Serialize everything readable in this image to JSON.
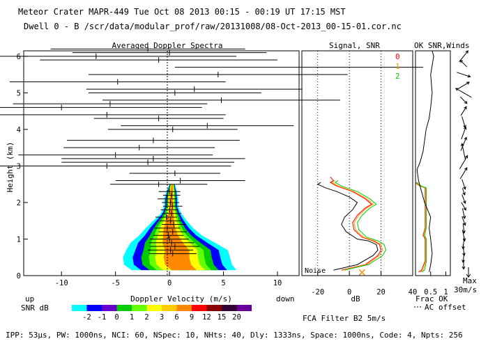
{
  "header": {
    "line1": "Meteor Crater  MAPR-449  Tue Oct 08 2013 00:15 - 00:19 UT 17:15 MST",
    "line2": "Dwell  0 -  B   /scr/data/modular_prof/raw/20131008/08-Oct-2013_00-15-01.cor.nc"
  },
  "footer": {
    "params": "IPP: 53μs,  PW: 1000ns,  NCI: 60,  NSpec: 10,  NHts: 40,  Dly: 1333ns,  Space: 1000ns,  Code: 4,  Npts: 256",
    "fca": "FCA Filter B2  5m/s"
  },
  "chart_data": [
    {
      "type": "heatmap",
      "title": "Averaged Doppler Spectra",
      "xlabel": "Doppler Velocity (m/s)",
      "ylabel": "Height (km)",
      "xlim": [
        -13.5,
        12
      ],
      "ylim": [
        0,
        6.15
      ],
      "x_ticks": [
        -10,
        -5,
        0,
        5,
        10
      ],
      "y_ticks": [
        0,
        1,
        2,
        3,
        4,
        5,
        6
      ],
      "left_note": "up",
      "right_note": "down",
      "colorbar": {
        "label": "SNR dB",
        "tick_labels": [
          "-2",
          "-1",
          "0",
          "1",
          "2",
          "3",
          "6",
          "9",
          "12",
          "15",
          "20"
        ],
        "colors": [
          "#00ffff",
          "#0000ff",
          "#6600cc",
          "#00cc00",
          "#66ff00",
          "#ffff00",
          "#ffcc00",
          "#ff8800",
          "#ff0000",
          "#880000",
          "#330033",
          "#660099"
        ]
      },
      "profile_outline": [
        [
          0.15,
          -3.5,
          6.2
        ],
        [
          0.3,
          -4.2,
          5.8
        ],
        [
          0.5,
          -4.3,
          5.6
        ],
        [
          0.7,
          -4.0,
          5.4
        ],
        [
          0.9,
          -3.6,
          4.2
        ],
        [
          1.1,
          -2.8,
          3.0
        ],
        [
          1.3,
          -2.2,
          2.2
        ],
        [
          1.5,
          -1.5,
          1.6
        ],
        [
          1.7,
          -0.8,
          1.1
        ],
        [
          1.9,
          -0.5,
          0.8
        ],
        [
          2.1,
          -0.5,
          0.8
        ],
        [
          2.3,
          -0.3,
          0.7
        ],
        [
          2.5,
          0.0,
          0.5
        ]
      ],
      "moments": [
        {
          "h": 0.6,
          "v": 0.3,
          "w": 2.2
        },
        {
          "h": 0.7,
          "v": 0.1,
          "w": 2.1
        },
        {
          "h": 0.8,
          "v": 0.5,
          "w": 2.3
        },
        {
          "h": 0.9,
          "v": 0.2,
          "w": 2.1
        },
        {
          "h": 1.0,
          "v": 0.0,
          "w": 1.8
        },
        {
          "h": 1.1,
          "v": -0.1,
          "w": 1.4
        },
        {
          "h": 1.2,
          "v": 0.3,
          "w": 1.3
        },
        {
          "h": 1.3,
          "v": -0.2,
          "w": 1.2
        },
        {
          "h": 1.4,
          "v": 0.4,
          "w": 1.1
        },
        {
          "h": 1.5,
          "v": 0.1,
          "w": 1.0
        },
        {
          "h": 1.6,
          "v": -0.3,
          "w": 1.0
        },
        {
          "h": 1.7,
          "v": 0.2,
          "w": 0.9
        },
        {
          "h": 1.8,
          "v": 0.0,
          "w": 0.8
        },
        {
          "h": 1.9,
          "v": 0.3,
          "w": 0.9
        },
        {
          "h": 2.0,
          "v": 0.1,
          "w": 0.8
        },
        {
          "h": 2.1,
          "v": -0.2,
          "w": 0.9
        },
        {
          "h": 2.2,
          "v": 0.2,
          "w": 0.8
        },
        {
          "h": 2.3,
          "v": 0.0,
          "w": 1.0
        },
        {
          "h": 2.5,
          "v": -1.0,
          "w": 4.5
        },
        {
          "h": 2.6,
          "v": 1.0,
          "w": 6.0
        },
        {
          "h": 2.8,
          "v": 0.5,
          "w": 4.2
        },
        {
          "h": 3.0,
          "v": -5.8,
          "w": 11.5
        },
        {
          "h": 3.1,
          "v": -2.0,
          "w": 8.0
        },
        {
          "h": 3.2,
          "v": -1.5,
          "w": 8.5
        },
        {
          "h": 3.3,
          "v": -5.0,
          "w": 9.0
        },
        {
          "h": 3.5,
          "v": -2.8,
          "w": 7.0
        },
        {
          "h": 3.7,
          "v": -1.5,
          "w": 8.0
        },
        {
          "h": 4.0,
          "v": 0.3,
          "w": 6.0
        },
        {
          "h": 4.1,
          "v": 3.5,
          "w": 8.0
        },
        {
          "h": 4.3,
          "v": -1.0,
          "w": 6.0
        },
        {
          "h": 4.4,
          "v": -5.8,
          "w": 11.0
        },
        {
          "h": 4.6,
          "v": -10.0,
          "w": 13.0
        },
        {
          "h": 4.7,
          "v": -5.5,
          "w": 9.0
        },
        {
          "h": 4.8,
          "v": 4.8,
          "w": 11.0
        },
        {
          "h": 5.0,
          "v": 0.5,
          "w": 8.0
        },
        {
          "h": 5.1,
          "v": 2.3,
          "w": 10.0
        },
        {
          "h": 5.3,
          "v": -4.8,
          "w": 10.0
        },
        {
          "h": 5.5,
          "v": 4.5,
          "w": 12.0
        },
        {
          "h": 5.7,
          "v": 12.0,
          "w": 11.5
        },
        {
          "h": 5.9,
          "v": -1.0,
          "w": 11.0
        },
        {
          "h": 6.0,
          "v": -6.8,
          "w": 13.0
        },
        {
          "h": 6.1,
          "v": 0.0,
          "w": 9.0
        },
        {
          "h": 6.2,
          "v": -2.0,
          "w": 9.0
        }
      ]
    },
    {
      "type": "line",
      "title": "Signal, SNR",
      "xlabel": "dB",
      "xlim": [
        -30,
        40
      ],
      "ylim": [
        0,
        6.15
      ],
      "x_ticks": [
        -20,
        0,
        20,
        40
      ],
      "noise_label": "Noise",
      "legend": [
        "0",
        "1",
        "2"
      ],
      "series": [
        {
          "name": "Signal",
          "color": "#000000",
          "points": [
            [
              -10,
              0.15
            ],
            [
              5,
              0.3
            ],
            [
              15,
              0.55
            ],
            [
              18,
              0.7
            ],
            [
              17,
              0.85
            ],
            [
              12,
              0.95
            ],
            [
              5,
              1.0
            ],
            [
              -2,
              1.2
            ],
            [
              -5,
              1.4
            ],
            [
              -3,
              1.6
            ],
            [
              2,
              1.8
            ],
            [
              5,
              2.0
            ],
            [
              0,
              2.15
            ],
            [
              -8,
              2.3
            ],
            [
              -15,
              2.4
            ],
            [
              -20,
              2.5
            ],
            [
              -18,
              2.55
            ]
          ]
        },
        {
          "name": "SNR 0",
          "color": "#ff0000",
          "points": [
            [
              -5,
              0.15
            ],
            [
              10,
              0.3
            ],
            [
              18,
              0.55
            ],
            [
              20,
              0.7
            ],
            [
              19,
              0.85
            ],
            [
              15,
              0.95
            ],
            [
              8,
              1.05
            ],
            [
              3,
              1.25
            ],
            [
              2,
              1.45
            ],
            [
              5,
              1.65
            ],
            [
              10,
              1.85
            ],
            [
              14,
              1.95
            ],
            [
              10,
              2.1
            ],
            [
              2,
              2.3
            ],
            [
              -8,
              2.45
            ],
            [
              -12,
              2.55
            ],
            [
              -10,
              2.6
            ],
            [
              -12,
              2.7
            ]
          ]
        },
        {
          "name": "SNR 1",
          "color": "#ff9900",
          "points": [
            [
              -4,
              0.15
            ],
            [
              11,
              0.3
            ],
            [
              19,
              0.55
            ],
            [
              21,
              0.7
            ],
            [
              20,
              0.85
            ],
            [
              16,
              0.95
            ],
            [
              9,
              1.05
            ],
            [
              4,
              1.25
            ],
            [
              3,
              1.45
            ],
            [
              6,
              1.65
            ],
            [
              11,
              1.85
            ],
            [
              15,
              1.95
            ],
            [
              11,
              2.1
            ],
            [
              3,
              2.3
            ],
            [
              -7,
              2.45
            ],
            [
              -11,
              2.55
            ],
            [
              -9,
              2.6
            ]
          ]
        },
        {
          "name": "SNR 2",
          "color": "#00cc00",
          "points": [
            [
              -3,
              0.15
            ],
            [
              12,
              0.3
            ],
            [
              21,
              0.55
            ],
            [
              23,
              0.7
            ],
            [
              22,
              0.85
            ],
            [
              18,
              0.95
            ],
            [
              11,
              1.05
            ],
            [
              6,
              1.25
            ],
            [
              5,
              1.45
            ],
            [
              8,
              1.65
            ],
            [
              13,
              1.85
            ],
            [
              17,
              1.95
            ],
            [
              13,
              2.1
            ],
            [
              5,
              2.3
            ],
            [
              -5,
              2.45
            ],
            [
              -9,
              2.55
            ],
            [
              -7,
              2.6
            ]
          ]
        }
      ],
      "marker": {
        "x": 8,
        "y": 0.05,
        "symbol": "x",
        "color": "#ff8800"
      }
    },
    {
      "type": "line",
      "title": "OK SNR,Winds",
      "xlabel": "Frac OK",
      "xlim": [
        0,
        1.15
      ],
      "ylim": [
        0,
        6.15
      ],
      "x_ticks": [
        0.5,
        1
      ],
      "note": "AC offset",
      "series": [
        {
          "name": "Frac OK 0",
          "color": "#ff0000",
          "points": [
            [
              0.1,
              0.1
            ],
            [
              0.2,
              0.15
            ],
            [
              0.32,
              0.4
            ],
            [
              0.32,
              1.0
            ],
            [
              0.25,
              1.1
            ],
            [
              0.3,
              1.25
            ],
            [
              0.32,
              1.3
            ],
            [
              0.32,
              2.4
            ],
            [
              0.15,
              2.45
            ],
            [
              0.05,
              2.5
            ],
            [
              0.02,
              2.55
            ]
          ]
        },
        {
          "name": "Frac OK 1",
          "color": "#ff9900",
          "points": [
            [
              0.15,
              0.1
            ],
            [
              0.25,
              0.15
            ],
            [
              0.34,
              0.4
            ],
            [
              0.34,
              1.0
            ],
            [
              0.27,
              1.1
            ],
            [
              0.32,
              1.25
            ],
            [
              0.34,
              1.3
            ],
            [
              0.34,
              2.4
            ],
            [
              0.17,
              2.45
            ],
            [
              0.07,
              2.5
            ],
            [
              0.04,
              2.55
            ]
          ]
        },
        {
          "name": "Frac OK 2",
          "color": "#00cc00",
          "points": [
            [
              0.2,
              0.1
            ],
            [
              0.3,
              0.15
            ],
            [
              0.36,
              0.4
            ],
            [
              0.36,
              1.0
            ],
            [
              0.3,
              1.1
            ],
            [
              0.34,
              1.25
            ],
            [
              0.36,
              1.3
            ],
            [
              0.36,
              2.4
            ],
            [
              0.2,
              2.45
            ],
            [
              0.1,
              2.5
            ],
            [
              0.06,
              2.55
            ]
          ]
        },
        {
          "name": "AC offset",
          "color": "#000000",
          "points": [
            [
              0.45,
              0.1
            ],
            [
              0.5,
              0.3
            ],
            [
              0.55,
              0.6
            ],
            [
              0.5,
              1.0
            ],
            [
              0.45,
              1.3
            ],
            [
              0.5,
              1.6
            ],
            [
              0.3,
              2.0
            ],
            [
              0.2,
              2.3
            ],
            [
              0.1,
              2.6
            ],
            [
              0.05,
              2.9
            ],
            [
              0.15,
              3.1
            ],
            [
              0.25,
              3.4
            ],
            [
              0.3,
              3.7
            ],
            [
              0.35,
              4.0
            ],
            [
              0.45,
              4.3
            ],
            [
              0.5,
              4.6
            ],
            [
              0.55,
              5.0
            ],
            [
              0.5,
              5.5
            ],
            [
              0.6,
              6.0
            ],
            [
              0.55,
              6.15
            ]
          ]
        }
      ],
      "wind_scale": {
        "label_top": "Max",
        "label_bottom": "30m/s"
      },
      "winds": [
        {
          "h": 0.3,
          "u": 0.0,
          "v": -8
        },
        {
          "h": 0.5,
          "u": -1,
          "v": -9
        },
        {
          "h": 0.7,
          "u": 1,
          "v": -10
        },
        {
          "h": 0.9,
          "u": -1,
          "v": -11
        },
        {
          "h": 1.1,
          "u": 2,
          "v": -10
        },
        {
          "h": 1.3,
          "u": 1,
          "v": -9
        },
        {
          "h": 1.5,
          "u": 3,
          "v": -8
        },
        {
          "h": 1.7,
          "u": 2,
          "v": -9
        },
        {
          "h": 1.9,
          "u": 4,
          "v": -7
        },
        {
          "h": 2.1,
          "u": 3,
          "v": -8
        },
        {
          "h": 2.3,
          "u": 2,
          "v": -6
        },
        {
          "h": 2.5,
          "u": 3,
          "v": -9
        },
        {
          "h": 2.8,
          "u": 6,
          "v": 10
        },
        {
          "h": 3.1,
          "u": 7,
          "v": 12
        },
        {
          "h": 3.4,
          "u": -3,
          "v": 14
        },
        {
          "h": 3.6,
          "u": 5,
          "v": 12
        },
        {
          "h": 3.9,
          "u": 4,
          "v": 11
        },
        {
          "h": 4.2,
          "u": 3,
          "v": -10
        },
        {
          "h": 4.5,
          "u": 5,
          "v": 8
        },
        {
          "h": 4.8,
          "u": 6,
          "v": -6
        },
        {
          "h": 5.0,
          "u": -14,
          "v": 8
        },
        {
          "h": 5.2,
          "u": 10,
          "v": 6
        },
        {
          "h": 5.5,
          "u": 12,
          "v": -4
        },
        {
          "h": 5.8,
          "u": -6,
          "v": 6
        },
        {
          "h": 6.0,
          "u": 8,
          "v": 10
        }
      ]
    }
  ]
}
